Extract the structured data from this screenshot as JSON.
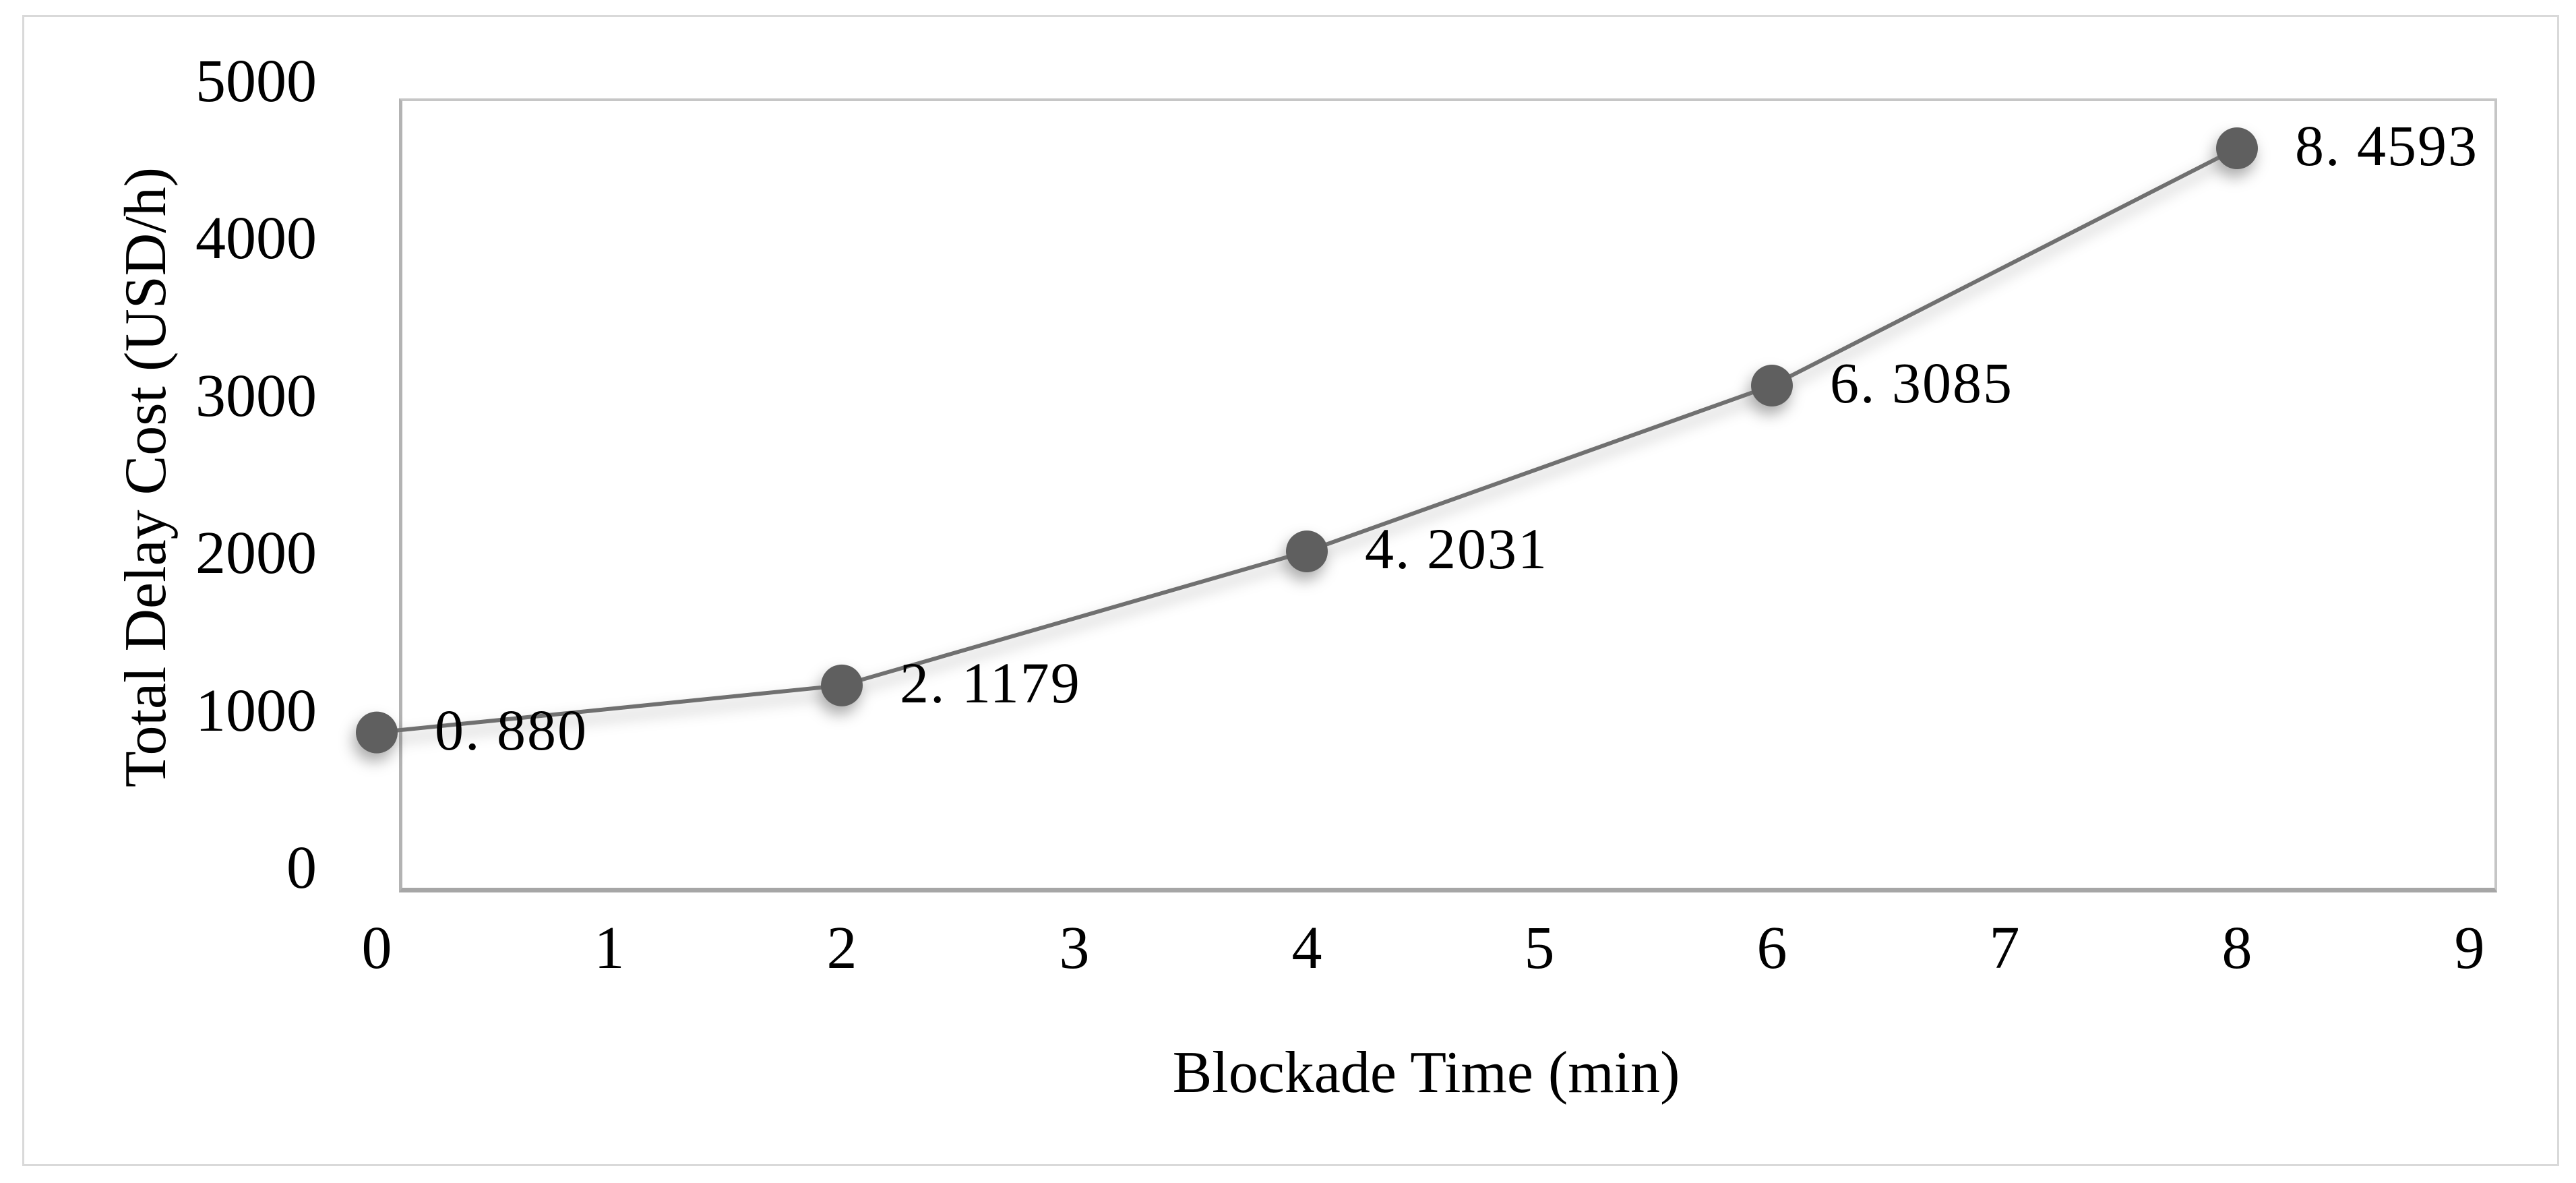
{
  "chart_data": {
    "type": "line",
    "title": "",
    "xlabel": "Blockade Time (min)",
    "ylabel": "Total Delay Cost (USD/h)",
    "series": [
      {
        "name": "Total Delay Cost",
        "x": [
          0,
          2,
          4,
          6,
          8
        ],
        "y": [
          880,
          1179,
          2031,
          3085,
          4593
        ],
        "point_labels": [
          "0. 880",
          "2. 1179",
          "4. 2031",
          "6. 3085",
          "8. 4593"
        ]
      }
    ],
    "xlim": [
      0,
      9
    ],
    "ylim": [
      0,
      5000
    ],
    "x_ticks": [
      0,
      1,
      2,
      3,
      4,
      5,
      6,
      7,
      8,
      9
    ],
    "x_tick_labels": [
      "0",
      "1",
      "2",
      "3",
      "4",
      "5",
      "6",
      "7",
      "8",
      "9"
    ],
    "y_ticks": [
      0,
      1000,
      2000,
      3000,
      4000,
      5000
    ],
    "y_tick_labels": [
      "0",
      "1000",
      "2000",
      "3000",
      "4000",
      "5000"
    ],
    "grid": false,
    "legend": "none",
    "colors": {
      "line": "#6f6f6f",
      "marker": "#5f5f5f",
      "text": "#000000",
      "plot_border": "#c6c6c6",
      "axis_bottom": "#a6a6a6",
      "figure_border": "#d9d9d9",
      "background": "#ffffff"
    }
  }
}
